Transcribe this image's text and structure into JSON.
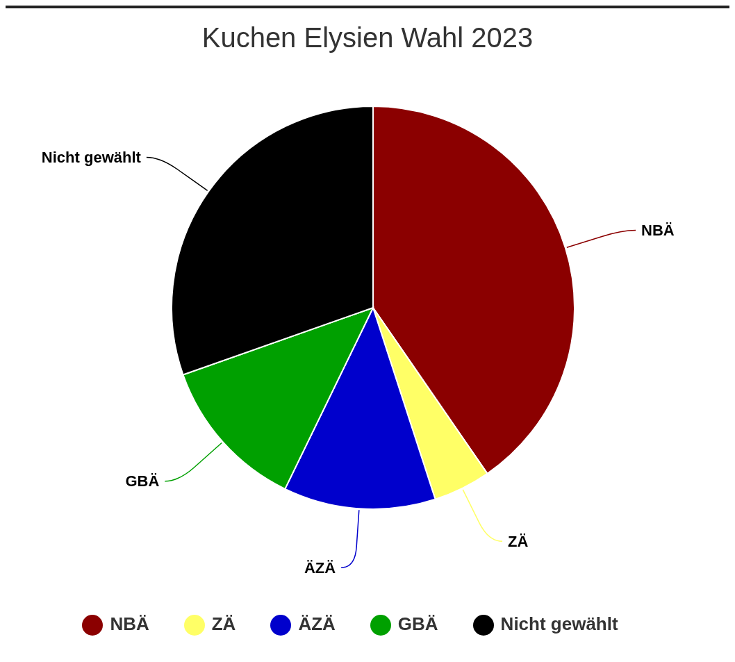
{
  "chart_data": {
    "type": "pie",
    "title": "Kuchen Elysien Wahl 2023",
    "categories": [
      "NBÄ",
      "ZÄ",
      "ÄZÄ",
      "GBÄ",
      "Nicht gewählt"
    ],
    "values": [
      40.4,
      4.6,
      12.2,
      12.4,
      30.4
    ],
    "colors": [
      "#8b0000",
      "#ffff66",
      "#0000cc",
      "#00a000",
      "#000000"
    ],
    "legend": "bottom"
  }
}
